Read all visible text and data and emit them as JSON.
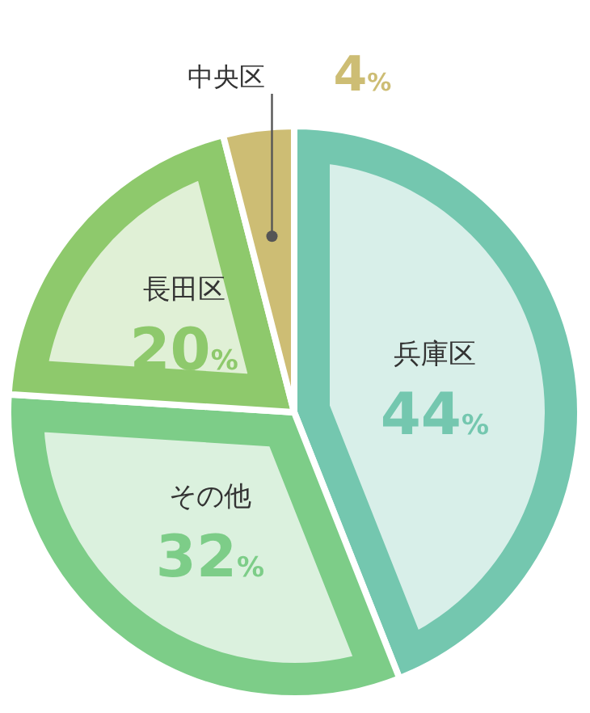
{
  "chart_data": {
    "type": "pie",
    "categories": [
      "兵庫区",
      "その他",
      "長田区",
      "中央区"
    ],
    "values": [
      44,
      32,
      20,
      4
    ],
    "colors": [
      "#74c7af",
      "#7dcd88",
      "#8ec96c",
      "#cdbd74"
    ],
    "value_labels": [
      "44%",
      "32%",
      "20%",
      "4%"
    ]
  }
}
